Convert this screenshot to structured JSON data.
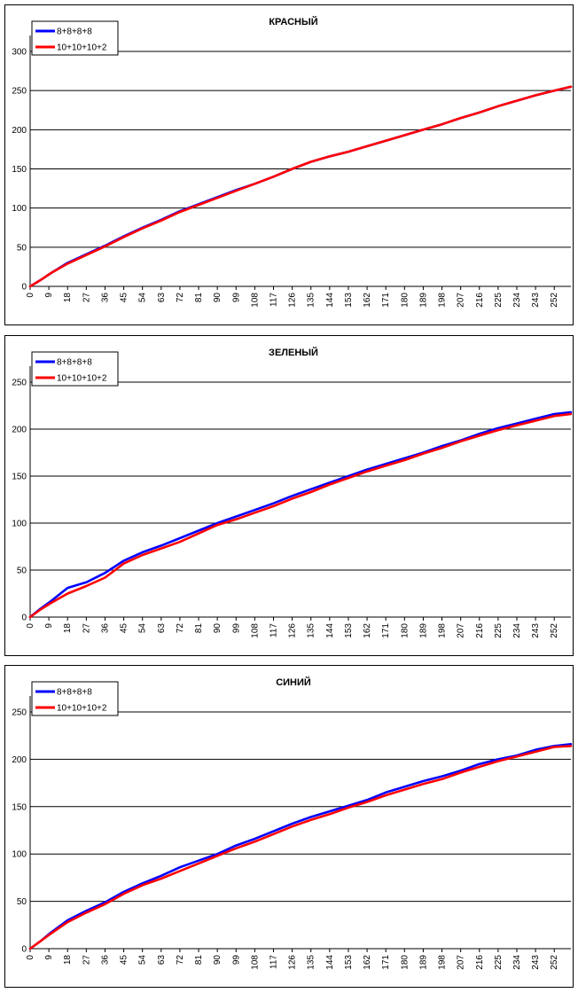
{
  "chart_data": [
    {
      "type": "line",
      "title": "КРАСНЫЙ",
      "xlabel": "",
      "ylabel": "",
      "ylim": [
        0,
        300
      ],
      "yticks": [
        0,
        50,
        100,
        150,
        200,
        250,
        300
      ],
      "xlim": [
        0,
        260
      ],
      "xticks": [
        0,
        9,
        18,
        27,
        36,
        45,
        54,
        63,
        72,
        81,
        90,
        99,
        108,
        117,
        126,
        135,
        144,
        153,
        162,
        171,
        180,
        189,
        198,
        207,
        216,
        225,
        234,
        243,
        252
      ],
      "grid": "horizontal",
      "legend": "top-left",
      "series": [
        {
          "name": "8+8+8+8",
          "color": "#0000ff",
          "x": [
            0,
            5,
            10,
            18,
            27,
            36,
            45,
            54,
            63,
            72,
            81,
            90,
            99,
            108,
            117,
            126,
            135,
            144,
            153,
            162,
            171,
            180,
            189,
            198,
            207,
            216,
            225,
            234,
            243,
            252,
            260
          ],
          "y": [
            0,
            8,
            17,
            30,
            41,
            52,
            64,
            75,
            85,
            96,
            105,
            114,
            123,
            131,
            140,
            150,
            159,
            166,
            172,
            179,
            186,
            193,
            200,
            207,
            215,
            222,
            230,
            237,
            244,
            250,
            255
          ]
        },
        {
          "name": "10+10+10+2",
          "color": "#ff0000",
          "x": [
            0,
            5,
            10,
            18,
            27,
            36,
            45,
            54,
            63,
            72,
            81,
            90,
            99,
            108,
            117,
            126,
            135,
            144,
            153,
            162,
            171,
            180,
            189,
            198,
            207,
            216,
            225,
            234,
            243,
            252,
            260
          ],
          "y": [
            0,
            8,
            17,
            29,
            40,
            51,
            63,
            74,
            84,
            95,
            104,
            113,
            122,
            131,
            140,
            150,
            159,
            166,
            172,
            179,
            186,
            193,
            200,
            207,
            215,
            222,
            230,
            237,
            244,
            250,
            255
          ]
        }
      ]
    },
    {
      "type": "line",
      "title": "ЗЕЛЕНЫЙ",
      "xlabel": "",
      "ylabel": "",
      "ylim": [
        0,
        250
      ],
      "yticks": [
        0,
        50,
        100,
        150,
        200,
        250
      ],
      "xlim": [
        0,
        260
      ],
      "xticks": [
        0,
        9,
        18,
        27,
        36,
        45,
        54,
        63,
        72,
        81,
        90,
        99,
        108,
        117,
        126,
        135,
        144,
        153,
        162,
        171,
        180,
        189,
        198,
        207,
        216,
        225,
        234,
        243,
        252
      ],
      "grid": "horizontal",
      "legend": "top-left",
      "series": [
        {
          "name": "8+8+8+8",
          "color": "#0000ff",
          "x": [
            0,
            5,
            10,
            18,
            27,
            36,
            45,
            54,
            63,
            72,
            81,
            90,
            99,
            108,
            117,
            126,
            135,
            144,
            153,
            162,
            171,
            180,
            189,
            198,
            207,
            216,
            225,
            234,
            243,
            252,
            260
          ],
          "y": [
            0,
            9,
            17,
            31,
            37,
            47,
            60,
            69,
            76,
            84,
            92,
            100,
            107,
            114,
            121,
            129,
            136,
            143,
            150,
            157,
            163,
            169,
            175,
            182,
            188,
            195,
            201,
            206,
            211,
            216,
            218
          ]
        },
        {
          "name": "10+10+10+2",
          "color": "#ff0000",
          "x": [
            0,
            5,
            10,
            18,
            27,
            36,
            45,
            54,
            63,
            72,
            81,
            90,
            99,
            108,
            117,
            126,
            135,
            144,
            153,
            162,
            171,
            180,
            189,
            198,
            207,
            216,
            225,
            234,
            243,
            252,
            260
          ],
          "y": [
            0,
            8,
            15,
            25,
            33,
            42,
            57,
            66,
            73,
            80,
            89,
            98,
            104,
            111,
            118,
            126,
            133,
            141,
            148,
            155,
            161,
            167,
            174,
            180,
            187,
            193,
            199,
            204,
            209,
            214,
            216
          ]
        }
      ]
    },
    {
      "type": "line",
      "title": "СИНИЙ",
      "xlabel": "",
      "ylabel": "",
      "ylim": [
        0,
        250
      ],
      "yticks": [
        0,
        50,
        100,
        150,
        200,
        250
      ],
      "xlim": [
        0,
        260
      ],
      "xticks": [
        0,
        9,
        18,
        27,
        36,
        45,
        54,
        63,
        72,
        81,
        90,
        99,
        108,
        117,
        126,
        135,
        144,
        153,
        162,
        171,
        180,
        189,
        198,
        207,
        216,
        225,
        234,
        243,
        252
      ],
      "grid": "horizontal",
      "legend": "top-left",
      "series": [
        {
          "name": "8+8+8+8",
          "color": "#0000ff",
          "x": [
            0,
            5,
            10,
            18,
            27,
            36,
            45,
            54,
            63,
            72,
            81,
            90,
            99,
            108,
            117,
            126,
            135,
            144,
            153,
            162,
            171,
            180,
            189,
            198,
            207,
            216,
            225,
            234,
            243,
            252,
            260
          ],
          "y": [
            0,
            8,
            17,
            30,
            40,
            49,
            60,
            69,
            77,
            86,
            93,
            100,
            109,
            116,
            124,
            132,
            139,
            145,
            151,
            157,
            165,
            171,
            177,
            182,
            188,
            195,
            200,
            204,
            210,
            214,
            216
          ]
        },
        {
          "name": "10+10+10+2",
          "color": "#ff0000",
          "x": [
            0,
            5,
            10,
            18,
            27,
            36,
            45,
            54,
            63,
            72,
            81,
            90,
            99,
            108,
            117,
            126,
            135,
            144,
            153,
            162,
            171,
            180,
            189,
            198,
            207,
            216,
            225,
            234,
            243,
            252,
            260
          ],
          "y": [
            0,
            8,
            16,
            28,
            38,
            47,
            58,
            67,
            74,
            82,
            90,
            98,
            106,
            113,
            121,
            129,
            136,
            142,
            149,
            155,
            162,
            168,
            174,
            179,
            186,
            192,
            198,
            203,
            208,
            213,
            214
          ]
        }
      ]
    }
  ]
}
